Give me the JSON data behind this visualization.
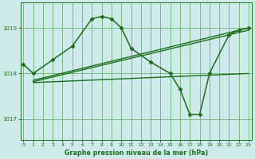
{
  "title": "Graphe pression niveau de la mer (hPa)",
  "bg_color": "#ceeaea",
  "grid_color": "#55aa55",
  "line_color": "#1a6e1a",
  "x_ticks": [
    0,
    1,
    2,
    3,
    4,
    5,
    6,
    7,
    8,
    9,
    10,
    11,
    12,
    13,
    14,
    15,
    16,
    17,
    18,
    19,
    20,
    21,
    22,
    23
  ],
  "y_ticks": [
    1017,
    1018,
    1019
  ],
  "ylim": [
    1016.55,
    1019.55
  ],
  "xlim": [
    -0.3,
    23.3
  ],
  "series": [
    {
      "x": [
        0,
        1,
        3,
        5,
        7,
        8,
        9,
        10,
        11,
        13,
        15,
        16,
        17,
        18,
        19,
        21,
        22,
        23
      ],
      "y": [
        1018.2,
        1018.0,
        1018.3,
        1018.6,
        1019.2,
        1019.25,
        1019.2,
        1019.0,
        1018.55,
        1018.25,
        1018.0,
        1017.65,
        1017.1,
        1017.1,
        1018.0,
        1018.85,
        1018.95,
        1019.0
      ],
      "marker": "D",
      "markersize": 2.5,
      "linewidth": 1.1
    },
    {
      "x": [
        1,
        23
      ],
      "y": [
        1017.85,
        1019.0
      ],
      "marker": null,
      "markersize": 0,
      "linewidth": 1.0
    },
    {
      "x": [
        1,
        23
      ],
      "y": [
        1017.82,
        1018.95
      ],
      "marker": null,
      "markersize": 0,
      "linewidth": 1.0
    },
    {
      "x": [
        1,
        23
      ],
      "y": [
        1017.8,
        1018.0
      ],
      "marker": null,
      "markersize": 0,
      "linewidth": 1.0
    }
  ]
}
